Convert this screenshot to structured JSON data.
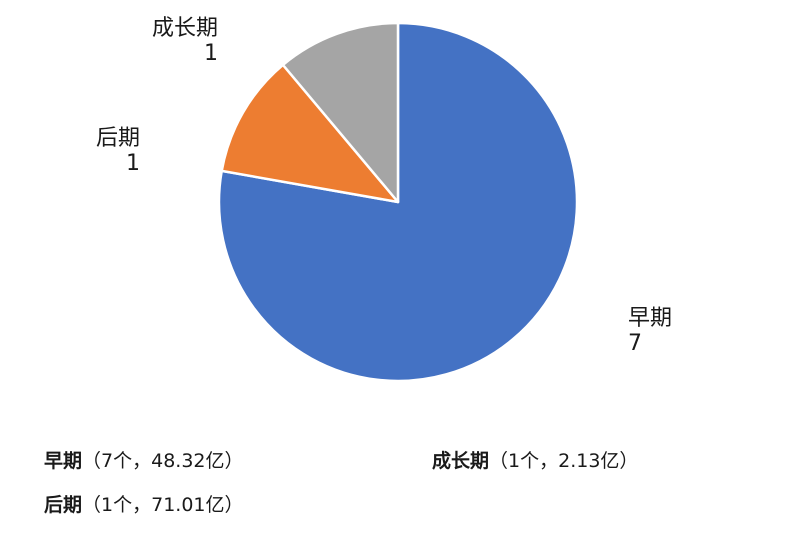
{
  "chart_data": {
    "type": "pie",
    "slices": [
      {
        "name": "早期",
        "value": 7,
        "color": "#4472C4"
      },
      {
        "name": "后期",
        "value": 1,
        "color": "#ED7D31"
      },
      {
        "name": "成长期",
        "value": 1,
        "color": "#A5A5A5"
      }
    ],
    "legend": [
      {
        "name": "早期",
        "detail": "（7个，48.32亿）"
      },
      {
        "name": "成长期",
        "detail": "（1个，2.13亿）"
      },
      {
        "name": "后期",
        "detail": "（1个，71.01亿）"
      }
    ]
  }
}
